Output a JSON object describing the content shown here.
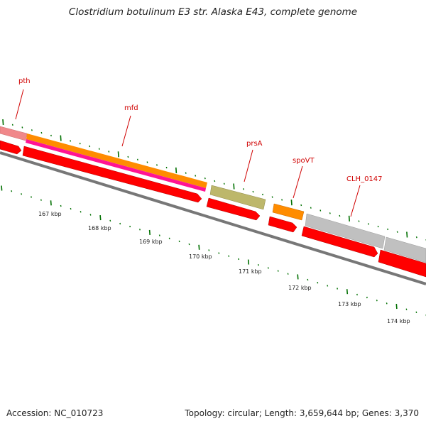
{
  "title": "Clostridium botulinum E3 str. Alaska E43, complete genome",
  "genes": [
    {
      "label": "pth",
      "color": "#f0888a"
    },
    {
      "label": "mfd",
      "color": "#ff8c00"
    },
    {
      "label": "prsA",
      "color": "#bdb76b"
    },
    {
      "label": "spoVT",
      "color": "#ff8c00"
    },
    {
      "label": "CLH_0147",
      "color": "#c0c0c0"
    }
  ],
  "scale_labels": [
    "167 kbp",
    "168 kbp",
    "169 kbp",
    "170 kbp",
    "171 kbp",
    "172 kbp",
    "173 kbp",
    "174 kbp"
  ],
  "footer": {
    "accession": "Accession: NC_010723",
    "summary": "Topology: circular; Length: 3,659,644 bp; Genes: 3,370"
  },
  "colors": {
    "cds_red": "#ff0000",
    "rna_pink": "#ff1493",
    "backbone_gray": "#777777",
    "tick_green": "#007000",
    "label_red": "#d00000"
  }
}
